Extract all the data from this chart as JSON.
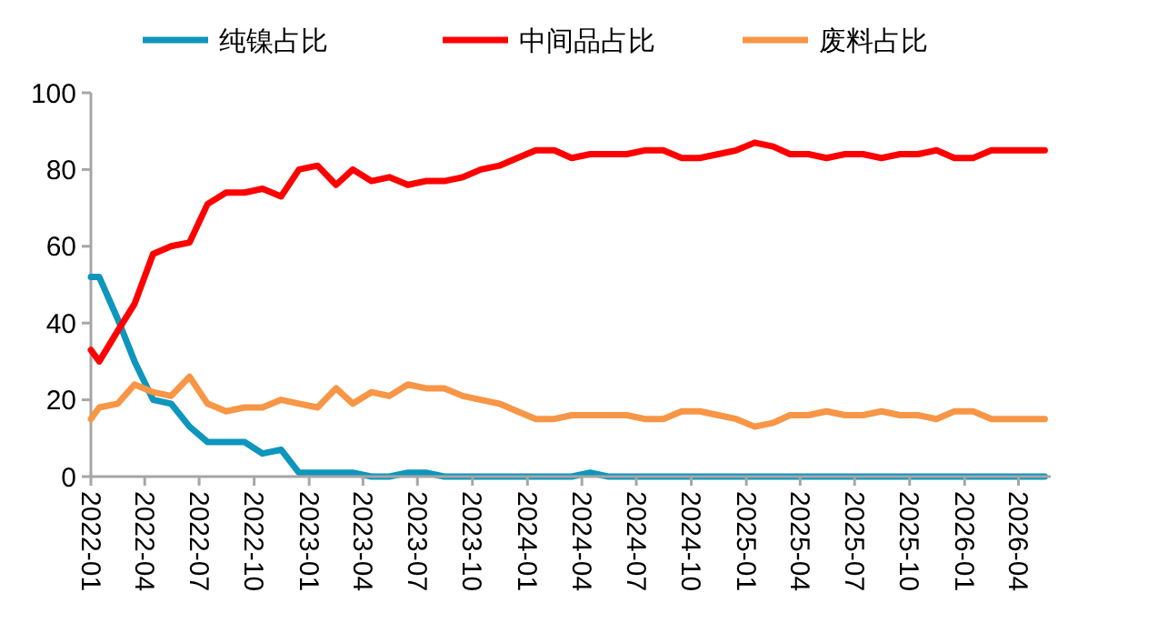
{
  "chart_data": {
    "type": "line",
    "x": [
      "2022-01-01",
      "2022-01-15",
      "2022-02-15",
      "2022-03-15",
      "2022-04-15",
      "2022-05-15",
      "2022-06-15",
      "2022-07-15",
      "2022-08-15",
      "2022-09-15",
      "2022-10-15",
      "2022-11-15",
      "2022-12-15",
      "2023-01-15",
      "2023-02-15",
      "2023-03-15",
      "2023-04-15",
      "2023-05-15",
      "2023-06-15",
      "2023-07-15",
      "2023-08-15",
      "2023-09-15",
      "2023-10-15",
      "2023-11-15",
      "2023-12-15",
      "2024-01-15",
      "2024-02-15",
      "2024-03-15",
      "2024-04-15",
      "2024-05-15",
      "2024-06-15",
      "2024-07-15",
      "2024-08-15",
      "2024-09-15",
      "2024-10-15",
      "2024-11-15",
      "2024-12-15",
      "2025-01-15",
      "2025-02-15",
      "2025-03-15",
      "2025-04-15",
      "2025-05-15",
      "2025-06-15",
      "2025-07-15",
      "2025-08-15",
      "2025-09-15",
      "2025-10-15",
      "2025-11-15",
      "2025-12-15",
      "2026-01-15",
      "2026-02-15",
      "2026-03-15",
      "2026-04-15",
      "2026-05-15"
    ],
    "series": [
      {
        "name": "纯镍占比",
        "color": "#0e96bc",
        "values": [
          52,
          52,
          41,
          30,
          20,
          19,
          13,
          9,
          9,
          9,
          6,
          7,
          1,
          1,
          1,
          1,
          0,
          0,
          1,
          1,
          0,
          0,
          0,
          0,
          0,
          0,
          0,
          0,
          1,
          0,
          0,
          0,
          0,
          0,
          0,
          0,
          0,
          0,
          0,
          0,
          0,
          0,
          0,
          0,
          0,
          0,
          0,
          0,
          0,
          0,
          0,
          0,
          0,
          0
        ]
      },
      {
        "name": "中间品占比",
        "color": "#ff0000",
        "values": [
          33,
          30,
          38,
          45,
          58,
          60,
          61,
          71,
          74,
          74,
          75,
          73,
          80,
          81,
          76,
          80,
          77,
          78,
          76,
          77,
          77,
          78,
          80,
          81,
          83,
          85,
          85,
          83,
          84,
          84,
          84,
          85,
          85,
          83,
          83,
          84,
          85,
          87,
          86,
          84,
          84,
          83,
          84,
          84,
          83,
          84,
          84,
          85,
          83,
          83,
          85,
          85,
          85,
          85
        ]
      },
      {
        "name": "废料占比",
        "color": "#f79646",
        "values": [
          15,
          18,
          19,
          24,
          22,
          21,
          26,
          19,
          17,
          18,
          18,
          20,
          19,
          18,
          23,
          19,
          22,
          21,
          24,
          23,
          23,
          21,
          20,
          19,
          17,
          15,
          15,
          16,
          16,
          16,
          16,
          15,
          15,
          17,
          17,
          16,
          15,
          13,
          14,
          16,
          16,
          17,
          16,
          16,
          17,
          16,
          16,
          15,
          17,
          17,
          15,
          15,
          15,
          15
        ]
      }
    ],
    "xlim": [
      "2022-01-01",
      "2026-05-25"
    ],
    "xticks": [
      {
        "value": "2022-01",
        "label": "2022-01"
      },
      {
        "value": "2022-04",
        "label": "2022-04"
      },
      {
        "value": "2022-07",
        "label": "2022-07"
      },
      {
        "value": "2022-10",
        "label": "2022-10"
      },
      {
        "value": "2023-01",
        "label": "2023-01"
      },
      {
        "value": "2023-04",
        "label": "2023-04"
      },
      {
        "value": "2023-07",
        "label": "2023-07"
      },
      {
        "value": "2023-10",
        "label": "2023-10"
      },
      {
        "value": "2024-01",
        "label": "2024-01"
      },
      {
        "value": "2024-04",
        "label": "2024-04"
      },
      {
        "value": "2024-07",
        "label": "2024-07"
      },
      {
        "value": "2024-10",
        "label": "2024-10"
      },
      {
        "value": "2025-01",
        "label": "2025-01"
      },
      {
        "value": "2025-04",
        "label": "2025-04"
      },
      {
        "value": "2025-07",
        "label": "2025-07"
      },
      {
        "value": "2025-10",
        "label": "2025-10"
      },
      {
        "value": "2026-01",
        "label": "2026-01"
      },
      {
        "value": "2026-04",
        "label": "2026-04"
      }
    ],
    "ylim": [
      0,
      100
    ],
    "yticks": [
      0,
      20,
      40,
      60,
      80,
      100
    ],
    "grid": false,
    "legend": "top",
    "marker": "none",
    "line_style": "solid"
  }
}
